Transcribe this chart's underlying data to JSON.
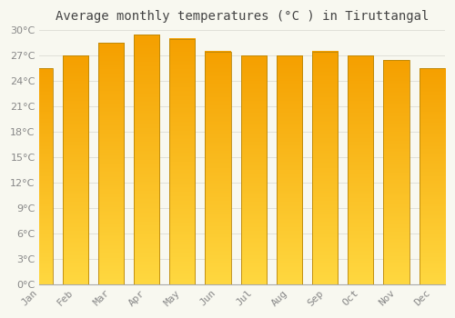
{
  "title": "Average monthly temperatures (°C ) in Tiruttangal",
  "months": [
    "Jan",
    "Feb",
    "Mar",
    "Apr",
    "May",
    "Jun",
    "Jul",
    "Aug",
    "Sep",
    "Oct",
    "Nov",
    "Dec"
  ],
  "values": [
    25.5,
    27.0,
    28.5,
    29.5,
    29.0,
    27.5,
    27.0,
    27.0,
    27.5,
    27.0,
    26.5,
    25.5
  ],
  "bar_color_top": "#F5A000",
  "bar_color_bottom": "#FFD840",
  "bar_edge_color": "#B8860B",
  "background_color": "#F8F8F0",
  "grid_color": "#E0E0D8",
  "ylim": [
    0,
    30
  ],
  "yticks": [
    0,
    3,
    6,
    9,
    12,
    15,
    18,
    21,
    24,
    27,
    30
  ],
  "title_fontsize": 10,
  "tick_fontsize": 8,
  "title_color": "#444444",
  "tick_color": "#888888",
  "bar_width": 0.72
}
